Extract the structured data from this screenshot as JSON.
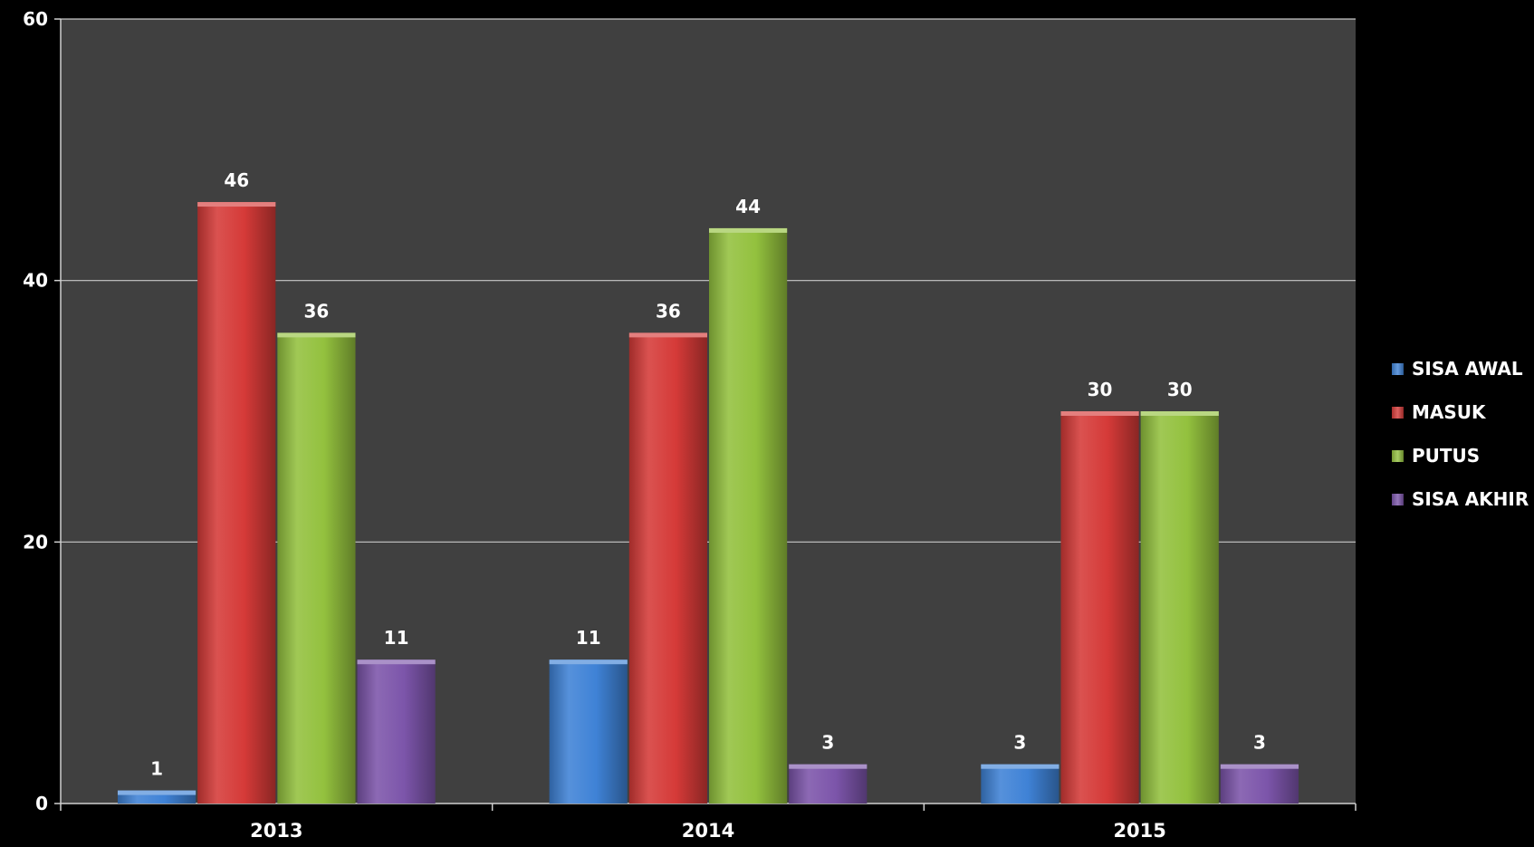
{
  "chart_data": {
    "type": "bar",
    "categories": [
      "2013",
      "2014",
      "2015"
    ],
    "series": [
      {
        "name": "SISA AWAL",
        "color": "#3f82d6",
        "values": [
          1,
          11,
          3
        ]
      },
      {
        "name": "MASUK",
        "color": "#d53a38",
        "values": [
          46,
          36,
          30
        ]
      },
      {
        "name": "PUTUS",
        "color": "#93c13e",
        "values": [
          36,
          44,
          30
        ]
      },
      {
        "name": "SISA AKHIR",
        "color": "#7c55aa",
        "values": [
          11,
          3,
          3
        ]
      }
    ],
    "ylim": [
      0,
      60
    ],
    "yticks": [
      0,
      20,
      40,
      60
    ],
    "data_labels": true,
    "grid": true,
    "legend_position": "right",
    "plot_background": "#404040",
    "page_background": "#000000"
  }
}
